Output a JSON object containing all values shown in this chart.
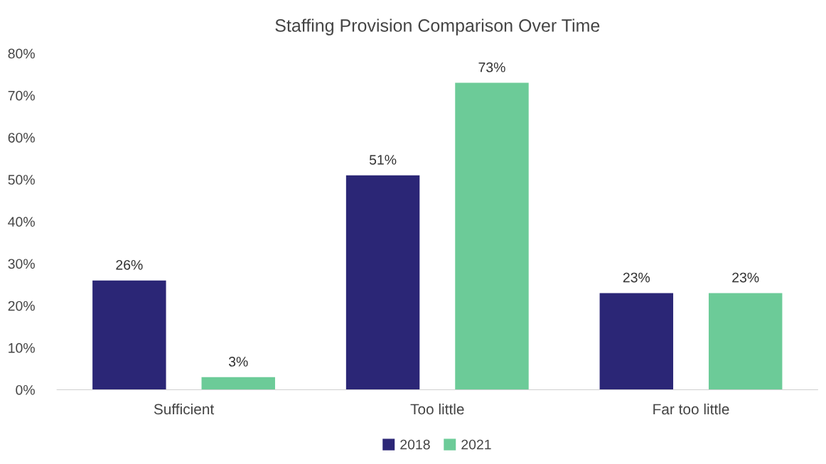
{
  "chart_data": {
    "type": "bar",
    "title": "Staffing Provision Comparison Over Time",
    "categories": [
      "Sufficient",
      "Too little",
      "Far too little"
    ],
    "series": [
      {
        "name": "2018",
        "color": "#2b2676",
        "values": [
          26,
          51,
          23
        ],
        "value_labels": [
          "26%",
          "51%",
          "23%"
        ]
      },
      {
        "name": "2021",
        "color": "#6ccb98",
        "values": [
          3,
          73,
          23
        ],
        "value_labels": [
          "3%",
          "73%",
          "23%"
        ]
      }
    ],
    "ylim": [
      0,
      80
    ],
    "yticks": [
      {
        "value": 0,
        "label": "0%"
      },
      {
        "value": 10,
        "label": "10%"
      },
      {
        "value": 20,
        "label": "20%"
      },
      {
        "value": 30,
        "label": "30%"
      },
      {
        "value": 40,
        "label": "40%"
      },
      {
        "value": 50,
        "label": "50%"
      },
      {
        "value": 60,
        "label": "60%"
      },
      {
        "value": 70,
        "label": "70%"
      },
      {
        "value": 80,
        "label": "80%"
      }
    ],
    "grid": false,
    "legend": "bottom"
  }
}
